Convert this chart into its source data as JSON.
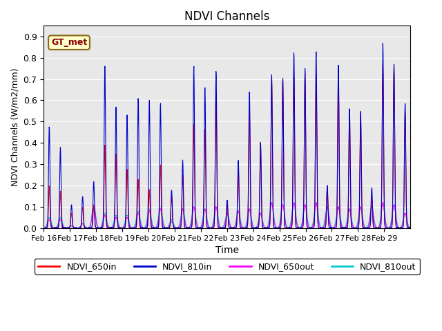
{
  "title": "NDVI Channels",
  "xlabel": "Time",
  "ylabel": "NDVI Channels (W/m2/mm)",
  "ylim": [
    0.0,
    0.95
  ],
  "yticks": [
    0.0,
    0.1,
    0.2,
    0.3,
    0.4,
    0.5,
    0.6,
    0.7,
    0.8,
    0.9
  ],
  "color_650in": "#ff0000",
  "color_810in": "#0000cc",
  "color_650out": "#ff00ff",
  "color_810out": "#00cccc",
  "background_color": "#e8e8e8",
  "legend_labels": [
    "NDVI_650in",
    "NDVI_810in",
    "NDVI_650out",
    "NDVI_810out"
  ],
  "annotation_text": "GT_met",
  "xtick_labels": [
    "Feb 16",
    "Feb 17",
    "Feb 18",
    "Feb 19",
    "Feb 20",
    "Feb 21",
    "Feb 22",
    "Feb 23",
    "Feb 24",
    "Feb 25",
    "Feb 26",
    "Feb 27",
    "Feb 28",
    "Feb 29"
  ],
  "peak_810in": [
    0.48,
    0.38,
    0.11,
    0.15,
    0.22,
    0.76,
    0.57,
    0.54,
    0.61,
    0.6,
    0.59,
    0.18,
    0.32,
    0.76,
    0.67,
    0.74,
    0.13,
    0.32,
    0.65,
    0.4,
    0.72,
    0.71,
    0.83,
    0.75,
    0.83,
    0.2,
    0.77,
    0.56,
    0.55,
    0.19,
    0.87,
    0.77,
    0.59
  ],
  "peak_650in": [
    0.2,
    0.17,
    0.07,
    0.1,
    0.1,
    0.39,
    0.35,
    0.28,
    0.23,
    0.18,
    0.3,
    0.15,
    0.25,
    0.49,
    0.47,
    0.65,
    0.13,
    0.29,
    0.55,
    0.4,
    0.71,
    0.7,
    0.72,
    0.73,
    0.72,
    0.19,
    0.72,
    0.55,
    0.52,
    0.15,
    0.77,
    0.76,
    0.55
  ],
  "peak_650out": [
    0.04,
    0.04,
    0.01,
    0.02,
    0.11,
    0.06,
    0.05,
    0.05,
    0.07,
    0.08,
    0.09,
    0.03,
    0.09,
    0.1,
    0.09,
    0.1,
    0.07,
    0.08,
    0.09,
    0.07,
    0.12,
    0.11,
    0.12,
    0.11,
    0.12,
    0.1,
    0.1,
    0.09,
    0.1,
    0.1,
    0.12,
    0.11,
    0.07
  ],
  "peak_810out": [
    0.05,
    0.05,
    0.01,
    0.02,
    0.11,
    0.07,
    0.06,
    0.06,
    0.08,
    0.09,
    0.1,
    0.04,
    0.09,
    0.1,
    0.09,
    0.1,
    0.07,
    0.08,
    0.09,
    0.07,
    0.12,
    0.11,
    0.12,
    0.11,
    0.12,
    0.1,
    0.1,
    0.09,
    0.1,
    0.1,
    0.11,
    0.11,
    0.07
  ]
}
